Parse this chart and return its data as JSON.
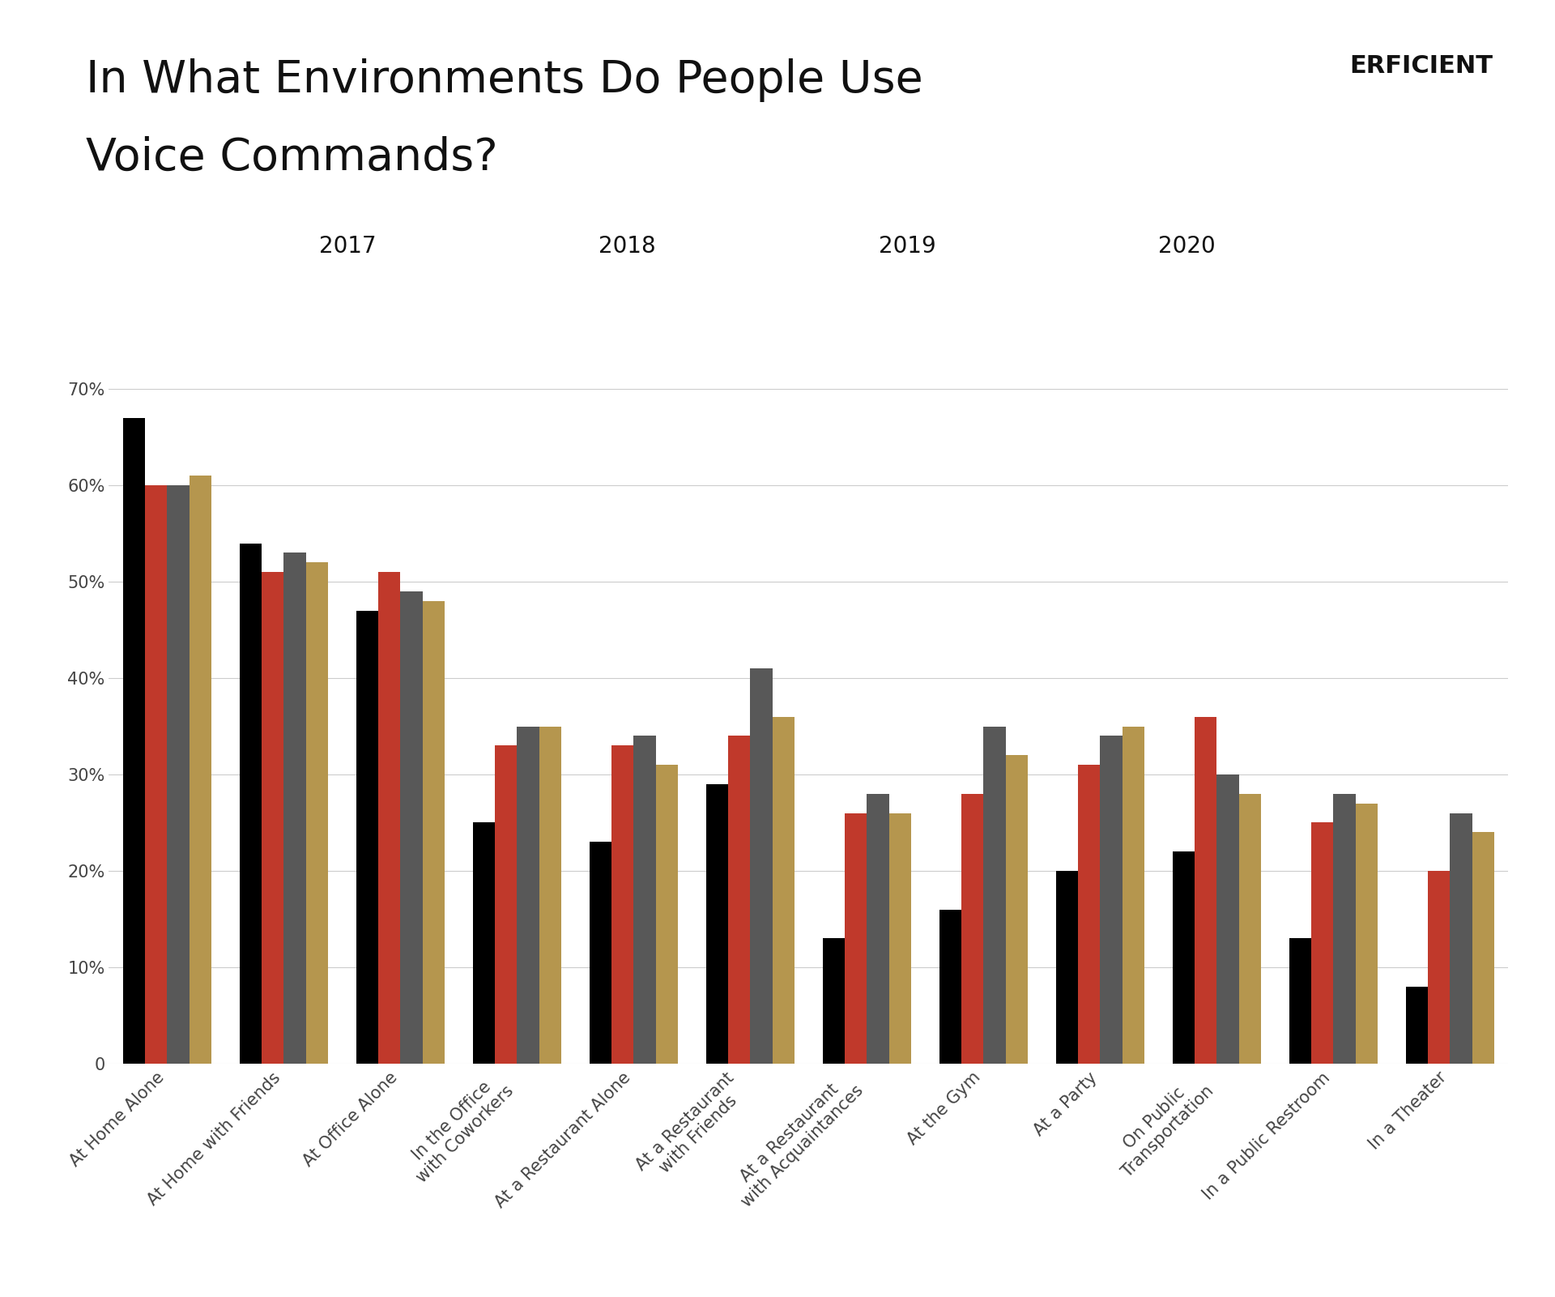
{
  "title_line1": "In What Environments Do People Use",
  "title_line2": "Voice Commands?",
  "categories": [
    "At Home Alone",
    "At Home with Friends",
    "At Office Alone",
    "In the Office\nwith Coworkers",
    "At a Restaurant Alone",
    "At a Restaurant\nwith Friends",
    "At a Restaurant\nwith Acquaintances",
    "At the Gym",
    "At a Party",
    "On Public\nTransportation",
    "In a Public Restroom",
    "In a Theater"
  ],
  "years": [
    "2017",
    "2018",
    "2019",
    "2020"
  ],
  "colors": [
    "#000000",
    "#c0392b",
    "#585858",
    "#b5964e"
  ],
  "data": {
    "2017": [
      67,
      54,
      47,
      25,
      23,
      29,
      13,
      16,
      20,
      22,
      13,
      8
    ],
    "2018": [
      60,
      51,
      51,
      33,
      33,
      34,
      26,
      28,
      31,
      36,
      25,
      20
    ],
    "2019": [
      60,
      53,
      49,
      35,
      34,
      41,
      28,
      35,
      34,
      30,
      28,
      26
    ],
    "2020": [
      61,
      52,
      48,
      35,
      31,
      36,
      26,
      32,
      35,
      28,
      27,
      24
    ]
  },
  "ylim": [
    0,
    70
  ],
  "yticks": [
    0,
    10,
    20,
    30,
    40,
    50,
    60,
    70
  ],
  "ytick_labels": [
    "0",
    "10%",
    "20%",
    "30%",
    "40%",
    "50%",
    "60%",
    "70%"
  ],
  "background_color": "#ffffff",
  "grid_color": "#cccccc",
  "title_fontsize": 40,
  "tick_fontsize": 15,
  "legend_fontsize": 20,
  "logo_color_D": "#c0392b",
  "logo_color_rest": "#111111"
}
